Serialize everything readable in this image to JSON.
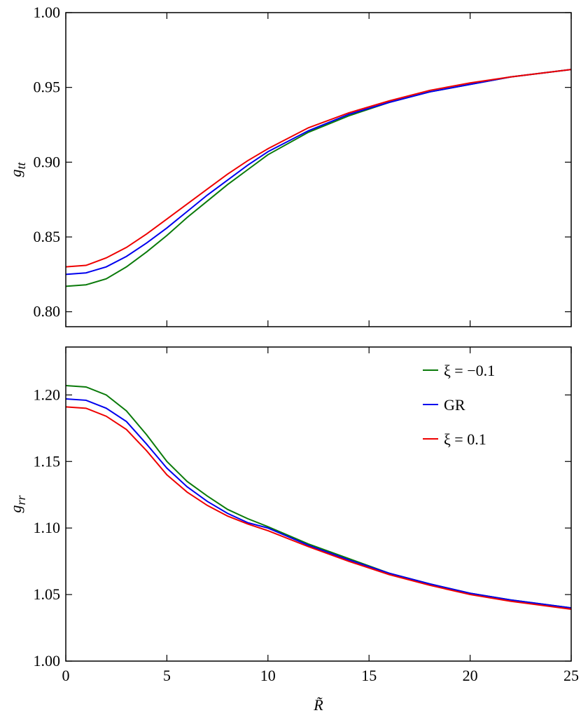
{
  "chart_data": [
    {
      "type": "line",
      "ylabel": [
        "g",
        "tt"
      ],
      "x": [
        0,
        1,
        2,
        3,
        4,
        5,
        6,
        7,
        8,
        9,
        10,
        12,
        14,
        16,
        18,
        20,
        22,
        25
      ],
      "series": [
        {
          "name": "ξ = −0.1",
          "color": "#0a7a0a",
          "values": [
            0.817,
            0.818,
            0.822,
            0.83,
            0.84,
            0.851,
            0.863,
            0.874,
            0.885,
            0.895,
            0.905,
            0.92,
            0.931,
            0.94,
            0.947,
            0.952,
            0.957,
            0.962
          ]
        },
        {
          "name": "GR",
          "color": "#0000ee",
          "values": [
            0.825,
            0.826,
            0.83,
            0.837,
            0.846,
            0.856,
            0.867,
            0.878,
            0.888,
            0.898,
            0.907,
            0.921,
            0.932,
            0.94,
            0.947,
            0.952,
            0.957,
            0.962
          ]
        },
        {
          "name": "ξ = 0.1",
          "color": "#ee0000",
          "values": [
            0.83,
            0.831,
            0.836,
            0.843,
            0.852,
            0.862,
            0.872,
            0.882,
            0.892,
            0.901,
            0.909,
            0.923,
            0.933,
            0.941,
            0.948,
            0.953,
            0.957,
            0.962
          ]
        }
      ],
      "xlim": [
        0,
        25
      ],
      "xticks": [
        0,
        5,
        10,
        15,
        20,
        25
      ],
      "ylim": [
        0.79,
        1.0
      ],
      "yticks": [
        {
          "value": 0.8,
          "label": "0.80"
        },
        {
          "value": 0.85,
          "label": "0.85"
        },
        {
          "value": 0.9,
          "label": "0.90"
        },
        {
          "value": 0.95,
          "label": "0.95"
        },
        {
          "value": 1.0,
          "label": "1.00"
        }
      ]
    },
    {
      "type": "line",
      "ylabel": [
        "g",
        "rr"
      ],
      "xlabel": "R̃",
      "x": [
        0,
        1,
        2,
        3,
        4,
        5,
        6,
        7,
        8,
        9,
        10,
        12,
        14,
        16,
        18,
        20,
        22,
        25
      ],
      "series": [
        {
          "name": "ξ = −0.1",
          "color": "#0a7a0a",
          "values": [
            1.207,
            1.206,
            1.2,
            1.188,
            1.17,
            1.15,
            1.135,
            1.124,
            1.114,
            1.107,
            1.101,
            1.088,
            1.077,
            1.066,
            1.058,
            1.051,
            1.046,
            1.04
          ]
        },
        {
          "name": "GR",
          "color": "#0000ee",
          "values": [
            1.197,
            1.196,
            1.19,
            1.18,
            1.163,
            1.145,
            1.131,
            1.12,
            1.111,
            1.104,
            1.1,
            1.087,
            1.076,
            1.066,
            1.058,
            1.051,
            1.046,
            1.04
          ]
        },
        {
          "name": "ξ = 0.1",
          "color": "#ee0000",
          "values": [
            1.191,
            1.19,
            1.184,
            1.174,
            1.158,
            1.14,
            1.127,
            1.117,
            1.109,
            1.103,
            1.098,
            1.086,
            1.075,
            1.065,
            1.057,
            1.05,
            1.045,
            1.039
          ]
        }
      ],
      "xlim": [
        0,
        25
      ],
      "xticks": [
        0,
        5,
        10,
        15,
        20,
        25
      ],
      "ylim": [
        1.0,
        1.236
      ],
      "yticks": [
        {
          "value": 1.0,
          "label": "1.00"
        },
        {
          "value": 1.05,
          "label": "1.05"
        },
        {
          "value": 1.1,
          "label": "1.10"
        },
        {
          "value": 1.15,
          "label": "1.15"
        },
        {
          "value": 1.2,
          "label": "1.20"
        }
      ],
      "legend": "upper right"
    }
  ]
}
